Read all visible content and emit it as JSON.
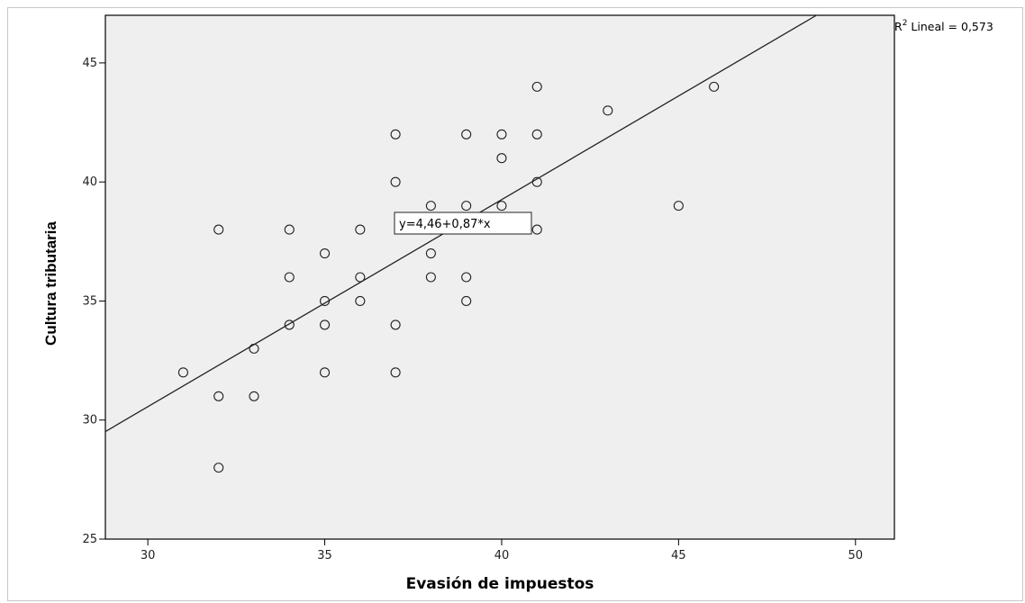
{
  "chart_data": {
    "type": "scatter",
    "xlabel": "Evasión de impuestos",
    "ylabel": "Cultura tributaria",
    "xlim": [
      28.8,
      51.1
    ],
    "ylim": [
      25,
      47
    ],
    "x_ticks": [
      30,
      35,
      40,
      45,
      50
    ],
    "y_ticks": [
      25,
      30,
      35,
      40,
      45
    ],
    "grid": false,
    "background": "#efefef",
    "points": [
      {
        "x": 31,
        "y": 32
      },
      {
        "x": 32,
        "y": 38
      },
      {
        "x": 32,
        "y": 31
      },
      {
        "x": 32,
        "y": 28
      },
      {
        "x": 33,
        "y": 33
      },
      {
        "x": 33,
        "y": 31
      },
      {
        "x": 34,
        "y": 38
      },
      {
        "x": 34,
        "y": 36
      },
      {
        "x": 34,
        "y": 34
      },
      {
        "x": 35,
        "y": 37
      },
      {
        "x": 35,
        "y": 35
      },
      {
        "x": 35,
        "y": 34
      },
      {
        "x": 35,
        "y": 32
      },
      {
        "x": 36,
        "y": 38
      },
      {
        "x": 36,
        "y": 36
      },
      {
        "x": 36,
        "y": 35
      },
      {
        "x": 37,
        "y": 42
      },
      {
        "x": 37,
        "y": 40
      },
      {
        "x": 37,
        "y": 34
      },
      {
        "x": 37,
        "y": 32
      },
      {
        "x": 38,
        "y": 39
      },
      {
        "x": 38,
        "y": 38
      },
      {
        "x": 38,
        "y": 37
      },
      {
        "x": 38,
        "y": 36
      },
      {
        "x": 39,
        "y": 42
      },
      {
        "x": 39,
        "y": 39
      },
      {
        "x": 39,
        "y": 36
      },
      {
        "x": 39,
        "y": 35
      },
      {
        "x": 40,
        "y": 42
      },
      {
        "x": 40,
        "y": 41
      },
      {
        "x": 40,
        "y": 39
      },
      {
        "x": 41,
        "y": 44
      },
      {
        "x": 41,
        "y": 42
      },
      {
        "x": 41,
        "y": 40
      },
      {
        "x": 41,
        "y": 38
      },
      {
        "x": 43,
        "y": 43
      },
      {
        "x": 45,
        "y": 39
      },
      {
        "x": 46,
        "y": 44
      }
    ],
    "fit_line": {
      "intercept": 4.46,
      "slope": 0.87
    },
    "equation_label": "y=4,46+0,87*x",
    "r2_label": {
      "prefix": "R",
      "sup": "2",
      "text": " Lineal = 0,573"
    }
  }
}
